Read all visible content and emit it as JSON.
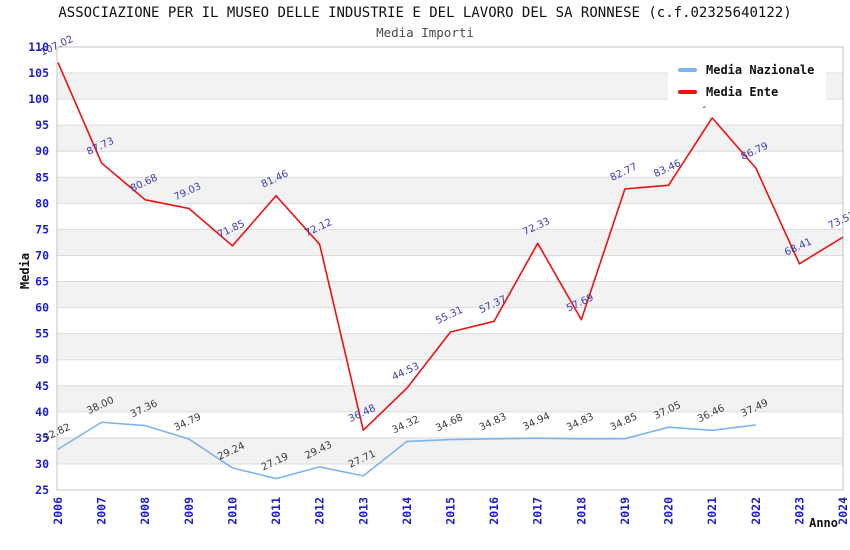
{
  "title": "ASSOCIAZIONE PER IL MUSEO DELLE INDUSTRIE E DEL LAVORO DEL SA RONNESE (c.f.02325640122)",
  "subtitle": "Media Importi",
  "legend": {
    "position": "top-right",
    "items": [
      {
        "label": "Media Nazionale",
        "color": "#7cb5ec"
      },
      {
        "label": "Media Ente",
        "color": "#ee1111"
      }
    ]
  },
  "axes": {
    "x_title": "Anno",
    "y_title": "Media",
    "x_tick_labels": [
      "2006",
      "2007",
      "2008",
      "2009",
      "2010",
      "2011",
      "2012",
      "2013",
      "2014",
      "2015",
      "2016",
      "2017",
      "2018",
      "2019",
      "2020",
      "2021",
      "2022",
      "2023",
      "2024"
    ],
    "y_tick_labels": [
      "25",
      "30",
      "35",
      "40",
      "45",
      "50",
      "55",
      "60",
      "65",
      "70",
      "75",
      "80",
      "85",
      "90",
      "95",
      "100",
      "105",
      "110"
    ],
    "tick_color": "#1c1cd2",
    "band_color": "#f2f2f2",
    "grid_color": "#dcdcdc",
    "border_color": "#c4c4c4"
  },
  "chart_data": {
    "type": "line",
    "x": [
      "2006",
      "2007",
      "2008",
      "2009",
      "2010",
      "2011",
      "2012",
      "2013",
      "2014",
      "2015",
      "2016",
      "2017",
      "2018",
      "2019",
      "2020",
      "2021",
      "2022",
      "2023",
      "2024"
    ],
    "title": "Media Importi",
    "xlabel": "Anno",
    "ylabel": "Media",
    "ylim": [
      25,
      110
    ],
    "ytick_step": 5,
    "grid": true,
    "legend_position": "top-right",
    "series": [
      {
        "name": "Media Nazionale",
        "color": "#7cb5ec",
        "label_color": "#3b3b3b",
        "values": [
          32.82,
          38.0,
          37.36,
          34.79,
          29.24,
          27.19,
          29.43,
          27.71,
          34.32,
          34.68,
          34.83,
          34.94,
          34.83,
          34.85,
          37.05,
          36.46,
          37.49,
          null,
          null
        ],
        "labels": [
          "32.82",
          "38.00",
          "37.36",
          "34.79",
          "29.24",
          "27.19",
          "29.43",
          "27.71",
          "34.32",
          "34.68",
          "34.83",
          "34.94",
          "34.83",
          "34.85",
          "37.05",
          "36.46",
          "37.49",
          "",
          ""
        ]
      },
      {
        "name": "Media Ente",
        "color": "#ee1111",
        "label_color": "#3c3cb4",
        "values": [
          107.02,
          87.73,
          80.68,
          79.03,
          71.85,
          81.46,
          72.12,
          36.48,
          44.53,
          55.31,
          57.37,
          72.33,
          57.69,
          82.77,
          83.46,
          96.4,
          86.79,
          68.41,
          73.52
        ],
        "labels": [
          "107.02",
          "87.73",
          "80.68",
          "79.03",
          "71.85",
          "81.46",
          "72.12",
          "36.48",
          "44.53",
          "55.31",
          "57.37",
          "72.33",
          "57.69",
          "82.77",
          "83.46",
          "96.4",
          "86.79",
          "68.41",
          "73.52"
        ]
      }
    ]
  }
}
